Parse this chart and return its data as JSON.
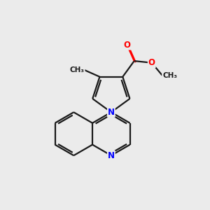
{
  "background_color": "#ebebeb",
  "bond_color": "#1a1a1a",
  "nitrogen_color": "#0000ff",
  "oxygen_color": "#ff0000",
  "line_width": 1.6,
  "figsize": [
    3.0,
    3.0
  ],
  "dpi": 100,
  "xlim": [
    0,
    10
  ],
  "ylim": [
    0,
    10
  ],
  "ring_r": 1.05,
  "pyrrole_r": 0.95
}
